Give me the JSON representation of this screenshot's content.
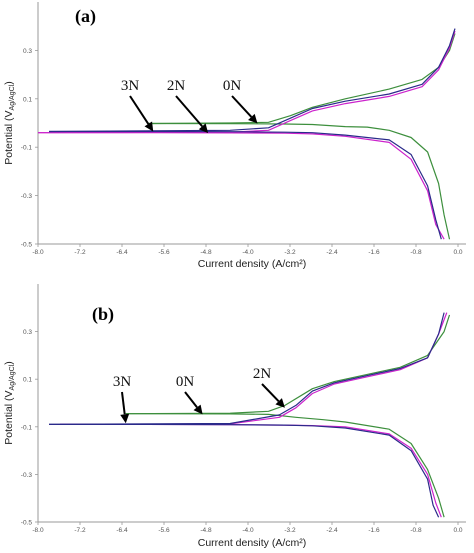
{
  "chart_data": [
    {
      "panel_label": "(a)",
      "type": "line",
      "xlabel": "Current density (A/cm²)",
      "ylabel": "Potential (V",
      "ylabel_sub": "Ag/AgCl",
      "ylabel_close": ")",
      "xlim": [
        -8.0,
        -0.2
      ],
      "ylim": [
        -0.5,
        0.5
      ],
      "x_ticks": [
        "-8.0",
        "-7.2",
        "-6.4",
        "-5.6",
        "-4.8",
        "-4.0",
        "-3.2",
        "-2.4",
        "-1.6",
        "-0.8",
        "0.0"
      ],
      "y_ticks": [
        "0.3",
        "0.1",
        "-0.1",
        "-0.3",
        "-0.5"
      ],
      "series": [
        {
          "name": "0N",
          "color": "#3d8f3d",
          "cathodic": [
            [
              -6.0,
              -0.002
            ],
            [
              -4.5,
              -0.003
            ],
            [
              -3.5,
              -0.004
            ],
            [
              -3.0,
              -0.006
            ],
            [
              -2.4,
              -0.015
            ],
            [
              -2.0,
              -0.017
            ],
            [
              -1.6,
              -0.03
            ],
            [
              -1.2,
              -0.06
            ],
            [
              -0.9,
              -0.12
            ],
            [
              -0.7,
              -0.25
            ],
            [
              -0.6,
              -0.38
            ],
            [
              -0.5,
              -0.48
            ]
          ],
          "anodic": [
            [
              -6.0,
              -0.002
            ],
            [
              -4.5,
              0.0
            ],
            [
              -3.8,
              0.003
            ],
            [
              -3.4,
              0.03
            ],
            [
              -3.0,
              0.065
            ],
            [
              -2.4,
              0.1
            ],
            [
              -1.6,
              0.14
            ],
            [
              -1.0,
              0.18
            ],
            [
              -0.7,
              0.23
            ],
            [
              -0.5,
              0.3
            ],
            [
              -0.4,
              0.37
            ]
          ]
        },
        {
          "name": "2N",
          "color": "#cc22cc",
          "cathodic": [
            [
              -8.0,
              -0.04
            ],
            [
              -6.0,
              -0.04
            ],
            [
              -4.5,
              -0.041
            ],
            [
              -3.5,
              -0.042
            ],
            [
              -3.0,
              -0.045
            ],
            [
              -2.4,
              -0.055
            ],
            [
              -1.6,
              -0.08
            ],
            [
              -1.2,
              -0.15
            ],
            [
              -0.9,
              -0.28
            ],
            [
              -0.75,
              -0.42
            ],
            [
              -0.6,
              -0.48
            ]
          ],
          "anodic": [
            [
              -8.0,
              -0.04
            ],
            [
              -4.5,
              -0.038
            ],
            [
              -3.8,
              -0.03
            ],
            [
              -3.4,
              0.01
            ],
            [
              -3.0,
              0.05
            ],
            [
              -2.4,
              0.08
            ],
            [
              -1.6,
              0.11
            ],
            [
              -1.0,
              0.15
            ],
            [
              -0.7,
              0.22
            ],
            [
              -0.5,
              0.31
            ],
            [
              -0.4,
              0.38
            ]
          ]
        },
        {
          "name": "3N",
          "color": "#2a2a8a",
          "cathodic": [
            [
              -7.8,
              -0.035
            ],
            [
              -6.0,
              -0.035
            ],
            [
              -4.5,
              -0.036
            ],
            [
              -3.5,
              -0.038
            ],
            [
              -3.0,
              -0.04
            ],
            [
              -2.4,
              -0.05
            ],
            [
              -1.6,
              -0.07
            ],
            [
              -1.2,
              -0.13
            ],
            [
              -0.9,
              -0.26
            ],
            [
              -0.75,
              -0.4
            ],
            [
              -0.65,
              -0.48
            ]
          ],
          "anodic": [
            [
              -7.8,
              -0.035
            ],
            [
              -4.5,
              -0.03
            ],
            [
              -3.8,
              -0.02
            ],
            [
              -3.4,
              0.02
            ],
            [
              -3.0,
              0.06
            ],
            [
              -2.4,
              0.09
            ],
            [
              -1.6,
              0.12
            ],
            [
              -1.0,
              0.16
            ],
            [
              -0.7,
              0.23
            ],
            [
              -0.5,
              0.32
            ],
            [
              -0.4,
              0.39
            ]
          ]
        }
      ],
      "annotations": [
        {
          "text": "3N",
          "to_x": -5.9,
          "to_y": -0.035
        },
        {
          "text": "2N",
          "to_x": -4.9,
          "to_y": -0.042
        },
        {
          "text": "0N",
          "to_x": -4.0,
          "to_y": -0.002
        }
      ]
    },
    {
      "panel_label": "(b)",
      "type": "line",
      "xlabel": "Current density (A/cm²)",
      "ylabel": "Potential (V",
      "ylabel_sub": "Ag/AgCl",
      "ylabel_close": ")",
      "xlim": [
        -8.0,
        -0.2
      ],
      "ylim": [
        -0.5,
        0.5
      ],
      "x_ticks": [
        "-8.0",
        "-7.2",
        "-6.4",
        "-5.6",
        "-4.8",
        "-4.0",
        "-3.2",
        "-2.4",
        "-1.6",
        "-0.8",
        "0.0"
      ],
      "y_ticks": [
        "0.3",
        "0.1",
        "-0.1",
        "-0.3",
        "-0.5"
      ],
      "series": [
        {
          "name": "0N",
          "color": "#3d8f3d",
          "cathodic": [
            [
              -6.4,
              -0.045
            ],
            [
              -4.5,
              -0.046
            ],
            [
              -3.8,
              -0.048
            ],
            [
              -3.3,
              -0.06
            ],
            [
              -2.8,
              -0.07
            ],
            [
              -2.4,
              -0.08
            ],
            [
              -1.6,
              -0.11
            ],
            [
              -1.2,
              -0.17
            ],
            [
              -0.9,
              -0.28
            ],
            [
              -0.7,
              -0.4
            ],
            [
              -0.6,
              -0.48
            ]
          ],
          "anodic": [
            [
              -6.4,
              -0.045
            ],
            [
              -4.5,
              -0.043
            ],
            [
              -3.8,
              -0.035
            ],
            [
              -3.5,
              -0.01
            ],
            [
              -3.0,
              0.06
            ],
            [
              -2.6,
              0.09
            ],
            [
              -2.0,
              0.12
            ],
            [
              -1.4,
              0.15
            ],
            [
              -0.9,
              0.2
            ],
            [
              -0.6,
              0.3
            ],
            [
              -0.5,
              0.37
            ]
          ]
        },
        {
          "name": "2N",
          "color": "#cc22cc",
          "cathodic": [
            [
              -7.6,
              -0.09
            ],
            [
              -6.0,
              -0.09
            ],
            [
              -4.5,
              -0.091
            ],
            [
              -3.5,
              -0.093
            ],
            [
              -3.0,
              -0.095
            ],
            [
              -2.4,
              -0.1
            ],
            [
              -1.6,
              -0.13
            ],
            [
              -1.2,
              -0.19
            ],
            [
              -0.9,
              -0.3
            ],
            [
              -0.75,
              -0.42
            ],
            [
              -0.65,
              -0.48
            ]
          ],
          "anodic": [
            [
              -7.6,
              -0.09
            ],
            [
              -4.5,
              -0.088
            ],
            [
              -3.6,
              -0.06
            ],
            [
              -3.3,
              -0.02
            ],
            [
              -3.0,
              0.04
            ],
            [
              -2.6,
              0.08
            ],
            [
              -2.0,
              0.11
            ],
            [
              -1.4,
              0.14
            ],
            [
              -0.9,
              0.19
            ],
            [
              -0.7,
              0.29
            ],
            [
              -0.55,
              0.38
            ]
          ]
        },
        {
          "name": "3N",
          "color": "#2a2a8a",
          "cathodic": [
            [
              -7.8,
              -0.09
            ],
            [
              -6.0,
              -0.09
            ],
            [
              -4.5,
              -0.091
            ],
            [
              -3.5,
              -0.093
            ],
            [
              -3.0,
              -0.096
            ],
            [
              -2.4,
              -0.105
            ],
            [
              -1.6,
              -0.135
            ],
            [
              -1.2,
              -0.2
            ],
            [
              -0.9,
              -0.32
            ],
            [
              -0.8,
              -0.43
            ],
            [
              -0.7,
              -0.48
            ]
          ],
          "anodic": [
            [
              -7.8,
              -0.09
            ],
            [
              -4.5,
              -0.086
            ],
            [
              -3.6,
              -0.05
            ],
            [
              -3.3,
              -0.01
            ],
            [
              -3.0,
              0.05
            ],
            [
              -2.6,
              0.085
            ],
            [
              -2.0,
              0.115
            ],
            [
              -1.4,
              0.145
            ],
            [
              -0.9,
              0.19
            ],
            [
              -0.7,
              0.29
            ],
            [
              -0.6,
              0.38
            ]
          ]
        }
      ],
      "annotations": [
        {
          "text": "3N",
          "to_x": -6.4,
          "to_y": -0.085
        },
        {
          "text": "0N",
          "to_x": -5.0,
          "to_y": -0.048
        },
        {
          "text": "2N",
          "to_x": -3.5,
          "to_y": -0.02
        }
      ]
    }
  ]
}
